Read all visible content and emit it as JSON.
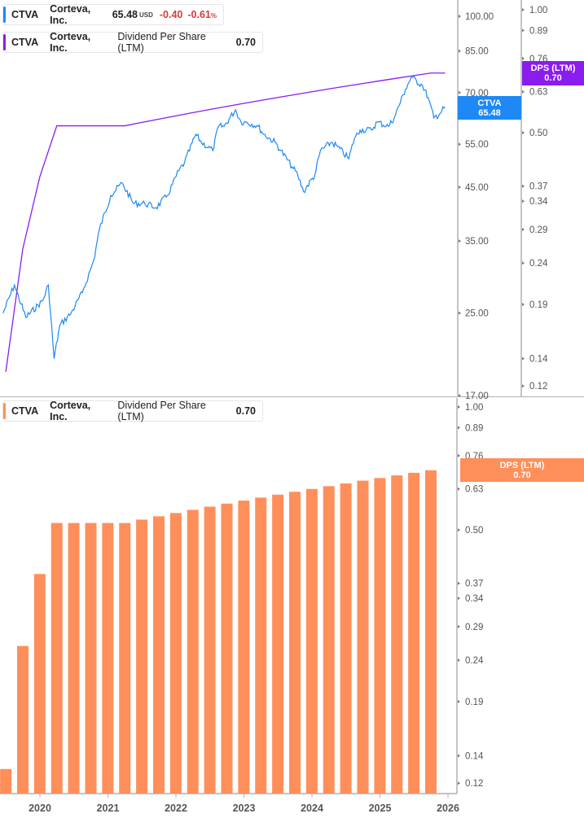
{
  "top_legend": {
    "price": {
      "ticker": "CTVA",
      "company": "Corteva, Inc.",
      "price": "65.48",
      "currency": "USD",
      "change": "-0.40",
      "change_pct": "-0.61",
      "pct_sign": "%"
    },
    "dps": {
      "ticker": "CTVA",
      "company": "Corteva, Inc.",
      "metric": "Dividend Per Share (LTM)",
      "value": "0.70"
    }
  },
  "bottom_legend": {
    "ticker": "CTVA",
    "company": "Corteva, Inc.",
    "metric": "Dividend Per Share (LTM)",
    "value": "0.70"
  },
  "badges": {
    "price": {
      "label": "CTVA",
      "value": "65.48"
    },
    "dps_top": {
      "label": "DPS (LTM)",
      "value": "0.70"
    },
    "dps_bottom": {
      "label": "DPS (LTM)",
      "value": "0.70"
    }
  },
  "colors": {
    "price": "#1e88f5",
    "dps_line": "#8a1cf0",
    "dps_bar": "#ff8f5a",
    "axis": "#b0b0b0"
  },
  "chart_data": [
    {
      "type": "line",
      "price_axis_scale": "log",
      "price_ticks": [
        "100.00",
        "85.00",
        "70.00",
        "55.00",
        "45.00",
        "35.00",
        "25.00",
        "17.00"
      ],
      "dps_axis_scale": "log",
      "dps_ticks": [
        "1.00",
        "0.89",
        "0.76",
        "0.63",
        "0.50",
        "0.37",
        "0.34",
        "0.29",
        "0.24",
        "0.19",
        "0.14",
        "0.12"
      ],
      "series": [
        {
          "name": "CTVA",
          "axis": "price",
          "points": [
            [
              "2019-06",
              25.0
            ],
            [
              "2019-08",
              28.5
            ],
            [
              "2019-10",
              24.5
            ],
            [
              "2020-01",
              26.5
            ],
            [
              "2020-02",
              28.5
            ],
            [
              "2020-03",
              20.2
            ],
            [
              "2020-04",
              23.6
            ],
            [
              "2020-06",
              25.0
            ],
            [
              "2020-08",
              27.5
            ],
            [
              "2020-10",
              32.0
            ],
            [
              "2020-11",
              37.0
            ],
            [
              "2021-01",
              43.3
            ],
            [
              "2021-03",
              45.9
            ],
            [
              "2021-05",
              41.7
            ],
            [
              "2021-07",
              41.7
            ],
            [
              "2021-09",
              40.9
            ],
            [
              "2021-11",
              43.3
            ],
            [
              "2022-01",
              48.6
            ],
            [
              "2022-02",
              50.4
            ],
            [
              "2022-04",
              57.6
            ],
            [
              "2022-05",
              55.5
            ],
            [
              "2022-07",
              53.4
            ],
            [
              "2022-08",
              59.8
            ],
            [
              "2022-09",
              59.8
            ],
            [
              "2022-11",
              64.6
            ],
            [
              "2022-12",
              61.0
            ],
            [
              "2023-01",
              61.0
            ],
            [
              "2023-03",
              59.8
            ],
            [
              "2023-04",
              57.6
            ],
            [
              "2023-06",
              55.5
            ],
            [
              "2023-07",
              53.4
            ],
            [
              "2023-09",
              49.5
            ],
            [
              "2023-10",
              47.6
            ],
            [
              "2023-11",
              44.1
            ],
            [
              "2024-01",
              47.6
            ],
            [
              "2024-02",
              53.4
            ],
            [
              "2024-04",
              55.5
            ],
            [
              "2024-05",
              54.4
            ],
            [
              "2024-07",
              51.4
            ],
            [
              "2024-08",
              56.6
            ],
            [
              "2024-09",
              58.8
            ],
            [
              "2024-11",
              58.8
            ],
            [
              "2024-12",
              61.0
            ],
            [
              "2025-02",
              59.8
            ],
            [
              "2025-03",
              62.2
            ],
            [
              "2025-05",
              71.1
            ],
            [
              "2025-06",
              75.2
            ],
            [
              "2025-08",
              72.4
            ],
            [
              "2025-09",
              68.4
            ],
            [
              "2025-10",
              62.2
            ],
            [
              "2025-11",
              63.4
            ],
            [
              "2025-12",
              65.48
            ]
          ]
        },
        {
          "name": "Dividend Per Share (LTM)",
          "axis": "dps",
          "ref": "dps_quarterly"
        }
      ]
    },
    {
      "type": "bar",
      "scale": "log",
      "ticks": [
        "1.00",
        "0.89",
        "0.76",
        "0.63",
        "0.50",
        "0.37",
        "0.34",
        "0.29",
        "0.24",
        "0.19",
        "0.14",
        "0.12"
      ],
      "x_ticks": [
        "2020",
        "2021",
        "2022",
        "2023",
        "2024",
        "2025",
        "2026"
      ],
      "series": [
        {
          "name": "Dividend Per Share (LTM)",
          "dates": [
            "2019-06",
            "2019-09",
            "2019-12",
            "2020-03",
            "2020-06",
            "2020-09",
            "2020-12",
            "2021-03",
            "2021-06",
            "2021-09",
            "2021-12",
            "2022-03",
            "2022-06",
            "2022-09",
            "2022-12",
            "2023-03",
            "2023-06",
            "2023-09",
            "2023-12",
            "2024-03",
            "2024-06",
            "2024-09",
            "2024-12",
            "2025-03",
            "2025-06",
            "2025-09"
          ],
          "values": [
            0.13,
            0.26,
            0.39,
            0.52,
            0.52,
            0.52,
            0.52,
            0.52,
            0.53,
            0.54,
            0.55,
            0.56,
            0.57,
            0.58,
            0.59,
            0.6,
            0.61,
            0.62,
            0.63,
            0.64,
            0.65,
            0.66,
            0.67,
            0.68,
            0.69,
            0.7
          ]
        }
      ]
    }
  ]
}
